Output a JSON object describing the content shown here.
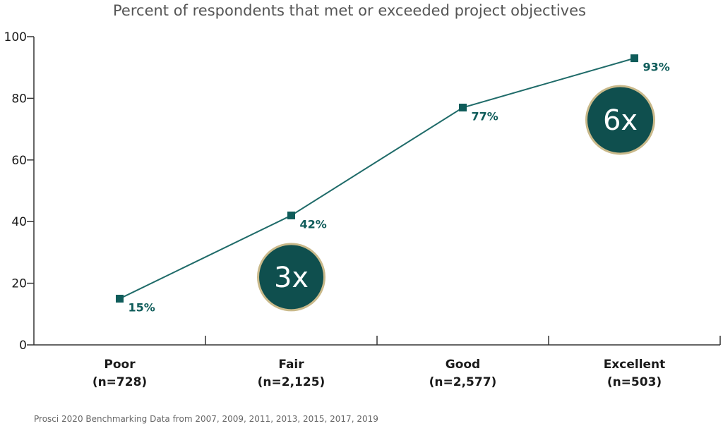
{
  "chart_data": {
    "type": "line",
    "title": "Percent of respondents that met or exceeded project objectives",
    "categories": [
      {
        "name": "Poor",
        "n": "(n=728)"
      },
      {
        "name": "Fair",
        "n": "(n=2,125)"
      },
      {
        "name": "Good",
        "n": "(n=2,577)"
      },
      {
        "name": "Excellent",
        "n": "(n=503)"
      }
    ],
    "series": [
      {
        "values": [
          15,
          42,
          77,
          93
        ],
        "data_labels": [
          "15%",
          "42%",
          "77%",
          "93%"
        ]
      }
    ],
    "ylim": [
      0,
      100
    ],
    "yticks": [
      0,
      20,
      40,
      60,
      80,
      100
    ],
    "grid": false,
    "annotations": [
      {
        "text": "3x",
        "near_category": "Fair"
      },
      {
        "text": "6x",
        "near_category": "Excellent"
      }
    ],
    "source": "Prosci 2020 Benchmarking Data from 2007, 2009, 2011, 2013, 2015, 2017, 2019"
  },
  "colors": {
    "line": "#1f6b69",
    "marker": "#0f5c5a",
    "badge_fill": "#0f4f4e",
    "badge_ring": "#c9b98a",
    "axis": "#333333"
  }
}
